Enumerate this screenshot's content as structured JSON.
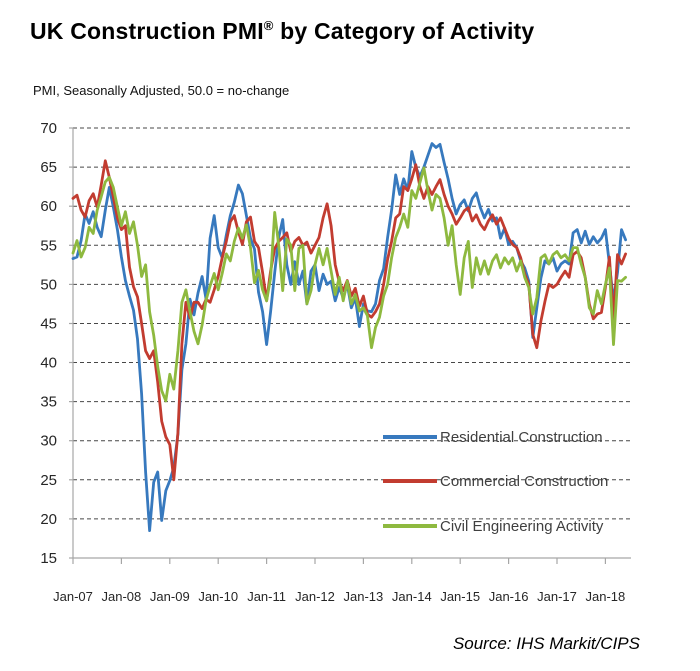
{
  "header": {
    "title_main": "UK Construction PMI",
    "title_sup": "®",
    "title_rest": " by Category of Activity",
    "subtitle": "PMI, Seasonally Adjusted, 50.0 = no-change"
  },
  "source": "Source: IHS Markit/CIPS",
  "chart_data": {
    "type": "line",
    "x_unit": "month",
    "x_range": [
      "Jan-07",
      "Jun-18"
    ],
    "x_tick_labels": [
      "Jan-07",
      "Jan-08",
      "Jan-09",
      "Jan-10",
      "Jan-11",
      "Jan-12",
      "Jan-13",
      "Jan-14",
      "Jan-15",
      "Jan-16",
      "Jan-17",
      "Jan-18"
    ],
    "months_per_tick": 12,
    "ylim": [
      15,
      70
    ],
    "ytick_interval": 5,
    "ytick_labels": [
      "15",
      "20",
      "25",
      "30",
      "35",
      "40",
      "45",
      "50",
      "55",
      "60",
      "65",
      "70"
    ],
    "grid": {
      "style": "dashed",
      "color": "#474747"
    },
    "axis_color": "#a6a6a6",
    "label_color": "#262626",
    "legend_text_color": "#3f3f3f",
    "legend_position": "inside-lower-right",
    "series": [
      {
        "name": "Residential Construction",
        "color": "#3779BE",
        "values": [
          53.3,
          53.5,
          55.6,
          59.0,
          57.8,
          59.3,
          57.3,
          56.1,
          59.5,
          62.4,
          59.9,
          57.0,
          53.5,
          50.5,
          48.5,
          46.7,
          43.0,
          36.0,
          26.0,
          18.5,
          24.7,
          26.0,
          19.8,
          23.6,
          24.9,
          26.6,
          30.8,
          39.1,
          42.4,
          48.1,
          46.1,
          48.9,
          51.0,
          48.1,
          55.9,
          58.8,
          54.7,
          53.4,
          56.3,
          58.8,
          60.5,
          62.7,
          61.6,
          58.8,
          55.9,
          54.5,
          49.0,
          46.5,
          42.3,
          46.5,
          51.5,
          56.0,
          58.3,
          52.5,
          50.0,
          52.9,
          50.0,
          51.7,
          47.5,
          51.7,
          52.5,
          49.2,
          51.3,
          50.0,
          50.4,
          47.9,
          49.6,
          48.3,
          50.0,
          47.0,
          48.3,
          44.6,
          47.5,
          46.6,
          46.5,
          47.5,
          50.5,
          52.0,
          56.0,
          59.5,
          64.0,
          61.5,
          63.5,
          62.0,
          67.0,
          65.0,
          63.8,
          65.0,
          66.5,
          68.0,
          67.5,
          67.9,
          65.6,
          63.5,
          61.0,
          59.0,
          60.2,
          60.8,
          59.4,
          61.0,
          61.7,
          59.8,
          58.5,
          59.6,
          58.1,
          58.5,
          55.9,
          57.2,
          55.1,
          55.5,
          54.7,
          53.0,
          52.1,
          50.4,
          43.2,
          47.0,
          50.8,
          53.0,
          52.6,
          53.4,
          51.7,
          52.6,
          53.0,
          52.6,
          56.6,
          57.0,
          55.3,
          56.8,
          55.1,
          56.1,
          55.3,
          55.9,
          57.0,
          52.6,
          47.9,
          51.5,
          57.0,
          55.7
        ]
      },
      {
        "name": "Commercial Construction",
        "color": "#C23C30",
        "values": [
          61.0,
          61.4,
          59.5,
          58.6,
          60.7,
          61.6,
          59.9,
          62.7,
          65.8,
          63.7,
          61.2,
          58.5,
          57.0,
          57.5,
          52.2,
          49.7,
          48.4,
          45.0,
          41.5,
          40.5,
          41.5,
          37.5,
          32.5,
          30.5,
          29.5,
          25.0,
          31.0,
          42.4,
          47.7,
          45.7,
          47.7,
          47.7,
          46.9,
          48.1,
          47.7,
          49.3,
          51.0,
          53.4,
          55.5,
          58.0,
          58.8,
          56.7,
          55.1,
          58.0,
          58.6,
          55.5,
          54.7,
          51.5,
          47.9,
          51.7,
          54.6,
          55.5,
          56.0,
          56.6,
          54.2,
          55.5,
          56.0,
          55.0,
          55.4,
          54.0,
          55.0,
          56.0,
          58.5,
          60.3,
          57.5,
          52.5,
          50.3,
          49.2,
          50.5,
          48.5,
          49.5,
          47.2,
          48.5,
          46.2,
          45.8,
          46.5,
          47.5,
          50.0,
          53.2,
          55.5,
          58.5,
          59.0,
          62.5,
          62.0,
          63.5,
          65.3,
          62.5,
          61.0,
          62.5,
          61.5,
          62.5,
          63.4,
          61.5,
          60.0,
          59.0,
          57.7,
          58.5,
          59.4,
          59.8,
          58.1,
          58.9,
          57.7,
          57.0,
          58.1,
          58.9,
          57.7,
          58.5,
          57.2,
          55.9,
          55.1,
          54.7,
          53.4,
          51.3,
          50.0,
          43.6,
          41.9,
          45.3,
          47.8,
          50.0,
          49.6,
          50.0,
          50.9,
          51.7,
          50.9,
          53.8,
          54.2,
          53.4,
          50.9,
          47.5,
          45.6,
          46.2,
          46.4,
          49.6,
          53.5,
          45.5,
          53.8,
          52.6,
          53.9
        ]
      },
      {
        "name": "Civil Engineering Activity",
        "color": "#8EB93F",
        "values": [
          54.0,
          55.6,
          53.5,
          54.7,
          57.3,
          56.5,
          59.5,
          61.2,
          63.1,
          63.7,
          62.4,
          59.9,
          57.5,
          59.3,
          56.5,
          58.0,
          55.0,
          51.0,
          52.5,
          46.5,
          43.5,
          39.5,
          36.4,
          35.1,
          38.5,
          36.6,
          41.5,
          47.7,
          49.3,
          46.5,
          44.0,
          42.4,
          44.8,
          48.0,
          49.8,
          51.4,
          49.3,
          51.4,
          53.9,
          53.0,
          55.5,
          57.2,
          55.9,
          57.6,
          54.7,
          50.2,
          51.8,
          49.3,
          47.9,
          50.8,
          59.2,
          55.0,
          49.2,
          55.8,
          55.0,
          49.2,
          54.6,
          55.0,
          47.5,
          49.2,
          52.5,
          54.6,
          52.5,
          54.6,
          51.7,
          48.7,
          50.9,
          47.9,
          50.4,
          47.5,
          48.7,
          46.6,
          47.0,
          46.0,
          41.9,
          44.5,
          45.8,
          48.5,
          50.0,
          53.4,
          56.0,
          57.3,
          59.0,
          57.3,
          62.0,
          61.0,
          63.0,
          64.9,
          62.0,
          59.5,
          61.5,
          61.0,
          58.5,
          55.0,
          57.5,
          52.5,
          48.7,
          53.4,
          55.5,
          49.6,
          53.4,
          51.3,
          53.0,
          51.3,
          53.0,
          53.8,
          52.1,
          53.4,
          52.6,
          53.4,
          51.7,
          53.0,
          50.9,
          49.6,
          46.2,
          48.3,
          53.4,
          53.8,
          52.6,
          53.8,
          54.2,
          53.4,
          53.8,
          53.0,
          54.7,
          54.7,
          52.6,
          50.9,
          47.0,
          46.2,
          49.2,
          47.5,
          50.0,
          52.1,
          42.3,
          50.5,
          50.4,
          50.9
        ]
      }
    ]
  }
}
